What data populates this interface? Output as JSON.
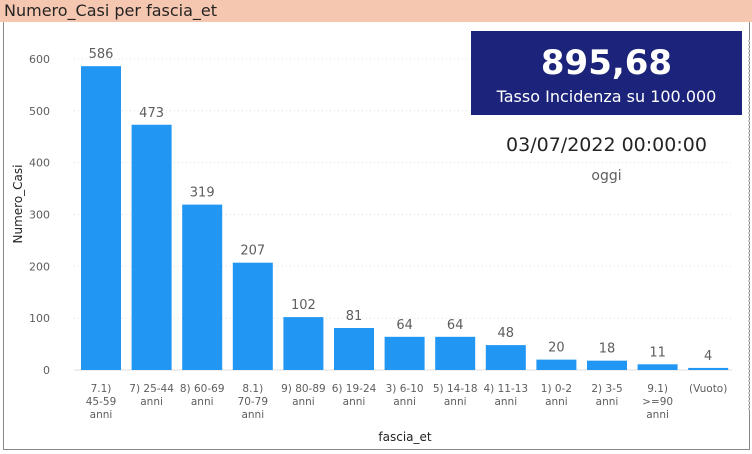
{
  "chart_data": {
    "type": "bar",
    "title": "Numero_Casi per fascia_et",
    "xlabel": "fascia_et",
    "ylabel": "Numero_Casi",
    "ylim": [
      0,
      650
    ],
    "yticks": [
      0,
      100,
      200,
      300,
      400,
      500,
      600
    ],
    "grid": true,
    "bar_color": "#2196f3",
    "categories": [
      [
        "7.1)",
        "45-59",
        "anni"
      ],
      [
        "7) 25-44",
        "anni"
      ],
      [
        "8) 60-69",
        "anni"
      ],
      [
        "8.1)",
        "70-79",
        "anni"
      ],
      [
        "9) 80-89",
        "anni"
      ],
      [
        "6) 19-24",
        "anni"
      ],
      [
        "3) 6-10",
        "anni"
      ],
      [
        "5) 14-18",
        "anni"
      ],
      [
        "4) 11-13",
        "anni"
      ],
      [
        "1) 0-2",
        "anni"
      ],
      [
        "2) 3-5",
        "anni"
      ],
      [
        "9.1)",
        ">=90",
        "anni"
      ],
      [
        "(Vuoto)"
      ]
    ],
    "values": [
      586,
      473,
      319,
      207,
      102,
      81,
      64,
      64,
      48,
      20,
      18,
      11,
      4
    ],
    "data_labels": [
      "586",
      "473",
      "319",
      "207",
      "102",
      "81",
      "64",
      "64",
      "48",
      "20",
      "18",
      "11",
      "4"
    ]
  },
  "kpi": {
    "value": "895,68",
    "label": "Tasso Incidenza su 100.000",
    "background": "#1b237a"
  },
  "date_card": {
    "value": "03/07/2022 00:00:00",
    "label": "oggi"
  }
}
